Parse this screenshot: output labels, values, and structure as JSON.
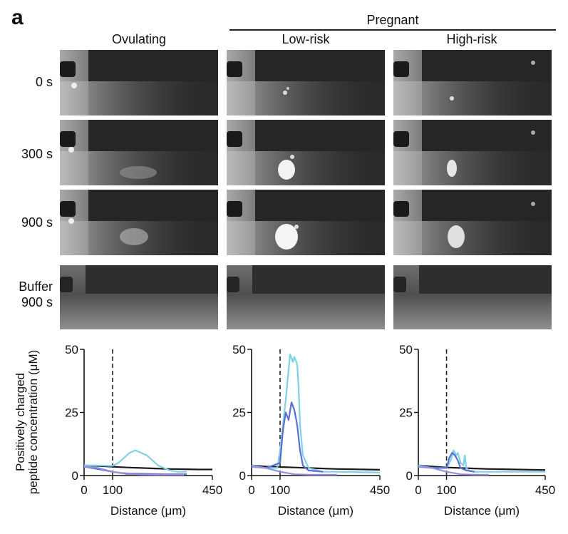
{
  "figure": {
    "panel_letter": "a",
    "group_label": "Pregnant",
    "columns": [
      "Ovulating",
      "Low-risk",
      "High-risk"
    ],
    "rows": [
      "0 s",
      "300 s",
      "900 s",
      "Buffer\n900 s"
    ]
  },
  "chart_data": [
    {
      "type": "line",
      "panel": "Ovulating",
      "xlabel": "Distance (μm)",
      "ylabel": "Positively charged\npeptide concentration (μM)",
      "xlim": [
        0,
        450
      ],
      "ylim": [
        0,
        50
      ],
      "xticks": [
        "0",
        "100",
        "450"
      ],
      "yticks": [
        "0",
        "25",
        "50"
      ],
      "vline_x": 100,
      "series": [
        {
          "color": "#1a1a1a",
          "x": [
            0,
            50,
            100,
            150,
            200,
            250,
            300,
            350,
            400,
            450
          ],
          "values": [
            4,
            3.8,
            3.5,
            3.2,
            3.0,
            2.8,
            2.6,
            2.5,
            2.4,
            2.4
          ]
        },
        {
          "color": "#7fd1e6",
          "x": [
            0,
            50,
            100,
            120,
            140,
            160,
            180,
            200,
            220,
            240,
            260,
            280,
            300,
            330,
            360
          ],
          "values": [
            4,
            4,
            3.8,
            5,
            7,
            9,
            10,
            9,
            8,
            6,
            4,
            3,
            2,
            1.5,
            1.5
          ]
        },
        {
          "color": "#5b6fd6",
          "x": [
            0,
            50,
            100,
            130,
            160,
            200,
            240,
            280,
            320,
            360
          ],
          "values": [
            3.5,
            2.5,
            1.5,
            1,
            0.8,
            0.7,
            0.6,
            0.5,
            0.5,
            0.5
          ]
        },
        {
          "color": "#9b8ce0",
          "x": [
            0,
            50,
            100,
            150,
            200,
            250,
            300,
            350
          ],
          "values": [
            3.5,
            3.0,
            1.5,
            0.6,
            0.4,
            0.3,
            0.3,
            0.3
          ]
        }
      ]
    },
    {
      "type": "line",
      "panel": "Low-risk",
      "xlabel": "Distance (μm)",
      "xlim": [
        0,
        450
      ],
      "ylim": [
        0,
        50
      ],
      "xticks": [
        "0",
        "100",
        "450"
      ],
      "yticks": [
        "0",
        "25",
        "50"
      ],
      "vline_x": 100,
      "series": [
        {
          "color": "#1a1a1a",
          "x": [
            0,
            50,
            100,
            150,
            200,
            250,
            300,
            350,
            400,
            450
          ],
          "values": [
            4,
            3.6,
            3.4,
            3.2,
            3.0,
            2.8,
            2.6,
            2.5,
            2.4,
            2.3
          ]
        },
        {
          "color": "#7fd1e6",
          "x": [
            0,
            50,
            90,
            100,
            110,
            120,
            135,
            145,
            150,
            160,
            165,
            170,
            180,
            200,
            250,
            300,
            450
          ],
          "values": [
            4,
            3,
            3,
            10,
            20,
            30,
            48,
            45,
            47,
            44,
            35,
            20,
            8,
            3,
            1.5,
            1.5,
            1.2
          ]
        },
        {
          "color": "#5b6fd6",
          "x": [
            0,
            50,
            100,
            110,
            120,
            130,
            140,
            150,
            160,
            170,
            180,
            200,
            250
          ],
          "values": [
            3.5,
            3,
            5,
            18,
            25,
            22,
            29,
            26,
            20,
            10,
            4,
            2,
            1.5
          ]
        },
        {
          "color": "#9b8ce0",
          "x": [
            0,
            50,
            100,
            150,
            200,
            250,
            300
          ],
          "values": [
            3.5,
            3,
            1.5,
            0.5,
            0.3,
            0.3,
            0.3
          ]
        }
      ]
    },
    {
      "type": "line",
      "panel": "High-risk",
      "xlabel": "Distance (μm)",
      "xlim": [
        0,
        450
      ],
      "ylim": [
        0,
        50
      ],
      "xticks": [
        "0",
        "100",
        "450"
      ],
      "yticks": [
        "0",
        "25",
        "50"
      ],
      "vline_x": 100,
      "series": [
        {
          "color": "#1a1a1a",
          "x": [
            0,
            50,
            100,
            150,
            200,
            250,
            300,
            350,
            400,
            450
          ],
          "values": [
            4,
            3.6,
            3.2,
            3.0,
            2.8,
            2.6,
            2.5,
            2.4,
            2.3,
            2.2
          ]
        },
        {
          "color": "#7fd1e6",
          "x": [
            0,
            50,
            100,
            115,
            125,
            135,
            140,
            150,
            160,
            165,
            170,
            180,
            200,
            250,
            300,
            450
          ],
          "values": [
            4,
            3,
            3,
            6,
            10,
            8,
            9,
            5,
            4,
            8,
            3,
            2,
            1.5,
            1.5,
            1.5,
            1.5
          ]
        },
        {
          "color": "#5b6fd6",
          "x": [
            0,
            50,
            100,
            110,
            120,
            130,
            140,
            150,
            170,
            200
          ],
          "values": [
            3.5,
            3,
            3,
            7,
            9,
            8,
            6,
            3,
            2,
            1.5
          ]
        },
        {
          "color": "#9b8ce0",
          "x": [
            0,
            50,
            100,
            150,
            200,
            250
          ],
          "values": [
            3.5,
            3,
            1.5,
            0.5,
            0.3,
            0.3
          ]
        }
      ]
    }
  ]
}
